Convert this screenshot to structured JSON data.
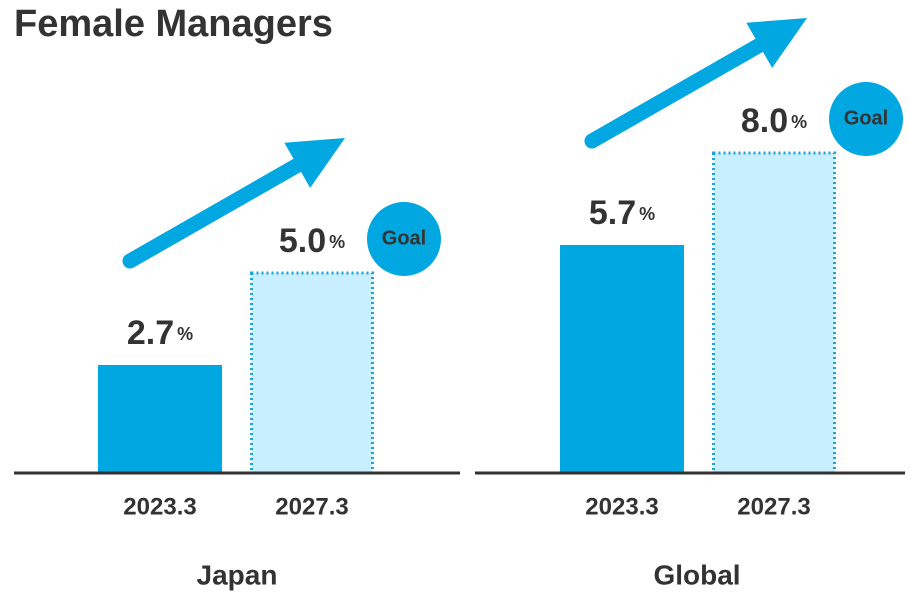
{
  "title": "Female Managers",
  "chart_data": [
    {
      "type": "bar",
      "title": "Japan",
      "categories": [
        "2023.3",
        "2027.3"
      ],
      "values": [
        2.7,
        5.0
      ],
      "value_labels": [
        "2.7%",
        "5.0%"
      ],
      "goal_label": "Goal",
      "colors": [
        "#00a7e1",
        "#c8efff"
      ]
    },
    {
      "type": "bar",
      "title": "Global",
      "categories": [
        "2023.3",
        "2027.3"
      ],
      "values": [
        5.7,
        8.0
      ],
      "value_labels": [
        "5.7%",
        "8.0%"
      ],
      "goal_label": "Goal",
      "colors": [
        "#00a7e1",
        "#c8efff"
      ]
    }
  ]
}
